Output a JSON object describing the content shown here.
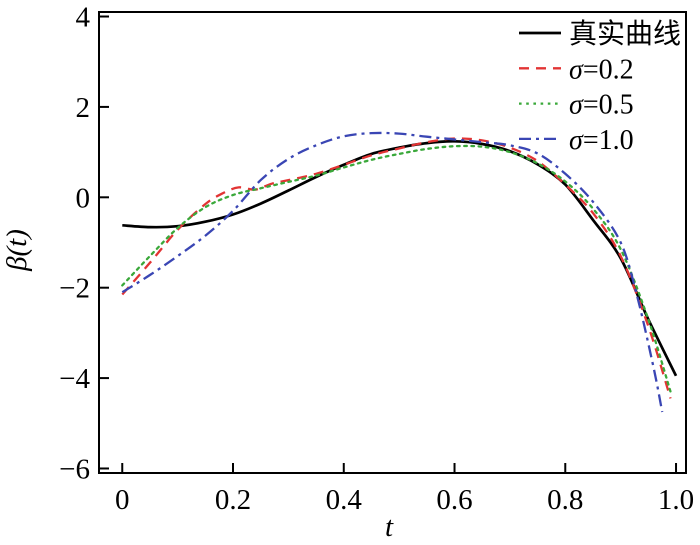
{
  "chart_data": {
    "type": "line",
    "title": "",
    "xlabel": "t",
    "ylabel": "β(t)",
    "xlim": [
      -0.042,
      1.018
    ],
    "ylim": [
      -6.1,
      4.1
    ],
    "grid": false,
    "legend_position": "top-right-inside",
    "x_ticks": [
      0,
      0.2,
      0.4,
      0.6,
      0.8,
      1.0
    ],
    "x_tick_labels": [
      "0",
      "0.2",
      "0.4",
      "0.6",
      "0.8",
      "1.0"
    ],
    "y_ticks": [
      4,
      2,
      0,
      -2,
      -4,
      -6
    ],
    "y_tick_labels": [
      "4",
      "2",
      "0",
      "−2",
      "−4",
      "−6"
    ],
    "series": [
      {
        "id": "true-curve",
        "name": "真实曲线",
        "color": "#000000",
        "style": "solid",
        "x": [
          0,
          0.05,
          0.1,
          0.15,
          0.2,
          0.25,
          0.3,
          0.35,
          0.4,
          0.45,
          0.5,
          0.55,
          0.6,
          0.65,
          0.7,
          0.75,
          0.8,
          0.85,
          0.9,
          0.95,
          1.0
        ],
        "y": [
          -0.62,
          -0.66,
          -0.64,
          -0.54,
          -0.38,
          -0.14,
          0.15,
          0.45,
          0.72,
          0.96,
          1.1,
          1.2,
          1.24,
          1.18,
          1.02,
          0.73,
          0.28,
          -0.5,
          -1.35,
          -2.7,
          -3.95
        ]
      },
      {
        "id": "sigma-0-2",
        "name": "σ=0.2",
        "color": "#e23434",
        "style": "dashed",
        "x": [
          0,
          0.05,
          0.1,
          0.15,
          0.18,
          0.21,
          0.24,
          0.27,
          0.3,
          0.35,
          0.4,
          0.45,
          0.5,
          0.55,
          0.6,
          0.65,
          0.7,
          0.75,
          0.8,
          0.85,
          0.9,
          0.95,
          0.99
        ],
        "y": [
          -2.15,
          -1.45,
          -0.72,
          -0.15,
          0.08,
          0.22,
          0.17,
          0.3,
          0.38,
          0.52,
          0.72,
          0.93,
          1.08,
          1.22,
          1.3,
          1.26,
          1.1,
          0.8,
          0.28,
          -0.35,
          -1.3,
          -2.85,
          -4.45
        ]
      },
      {
        "id": "sigma-0-5",
        "name": "σ=0.5",
        "color": "#3aa83a",
        "style": "dotted",
        "x": [
          0,
          0.05,
          0.1,
          0.15,
          0.2,
          0.25,
          0.3,
          0.35,
          0.4,
          0.45,
          0.5,
          0.55,
          0.6,
          0.65,
          0.7,
          0.75,
          0.8,
          0.85,
          0.9,
          0.95,
          0.99
        ],
        "y": [
          -1.95,
          -1.3,
          -0.68,
          -0.22,
          0.05,
          0.2,
          0.34,
          0.48,
          0.66,
          0.83,
          0.96,
          1.07,
          1.13,
          1.12,
          1.0,
          0.75,
          0.35,
          -0.25,
          -1.15,
          -2.7,
          -4.3
        ]
      },
      {
        "id": "sigma-1-0",
        "name": "σ=1.0",
        "color": "#3a46b4",
        "style": "dashdot",
        "x": [
          0,
          0.05,
          0.1,
          0.15,
          0.2,
          0.25,
          0.3,
          0.35,
          0.4,
          0.45,
          0.5,
          0.55,
          0.6,
          0.65,
          0.7,
          0.75,
          0.8,
          0.85,
          0.9,
          0.93,
          0.96,
          0.975
        ],
        "y": [
          -2.1,
          -1.72,
          -1.3,
          -0.85,
          -0.3,
          0.38,
          0.85,
          1.15,
          1.35,
          1.42,
          1.41,
          1.34,
          1.28,
          1.22,
          1.15,
          0.97,
          0.52,
          -0.1,
          -1.0,
          -2.2,
          -3.8,
          -4.75
        ]
      }
    ]
  }
}
